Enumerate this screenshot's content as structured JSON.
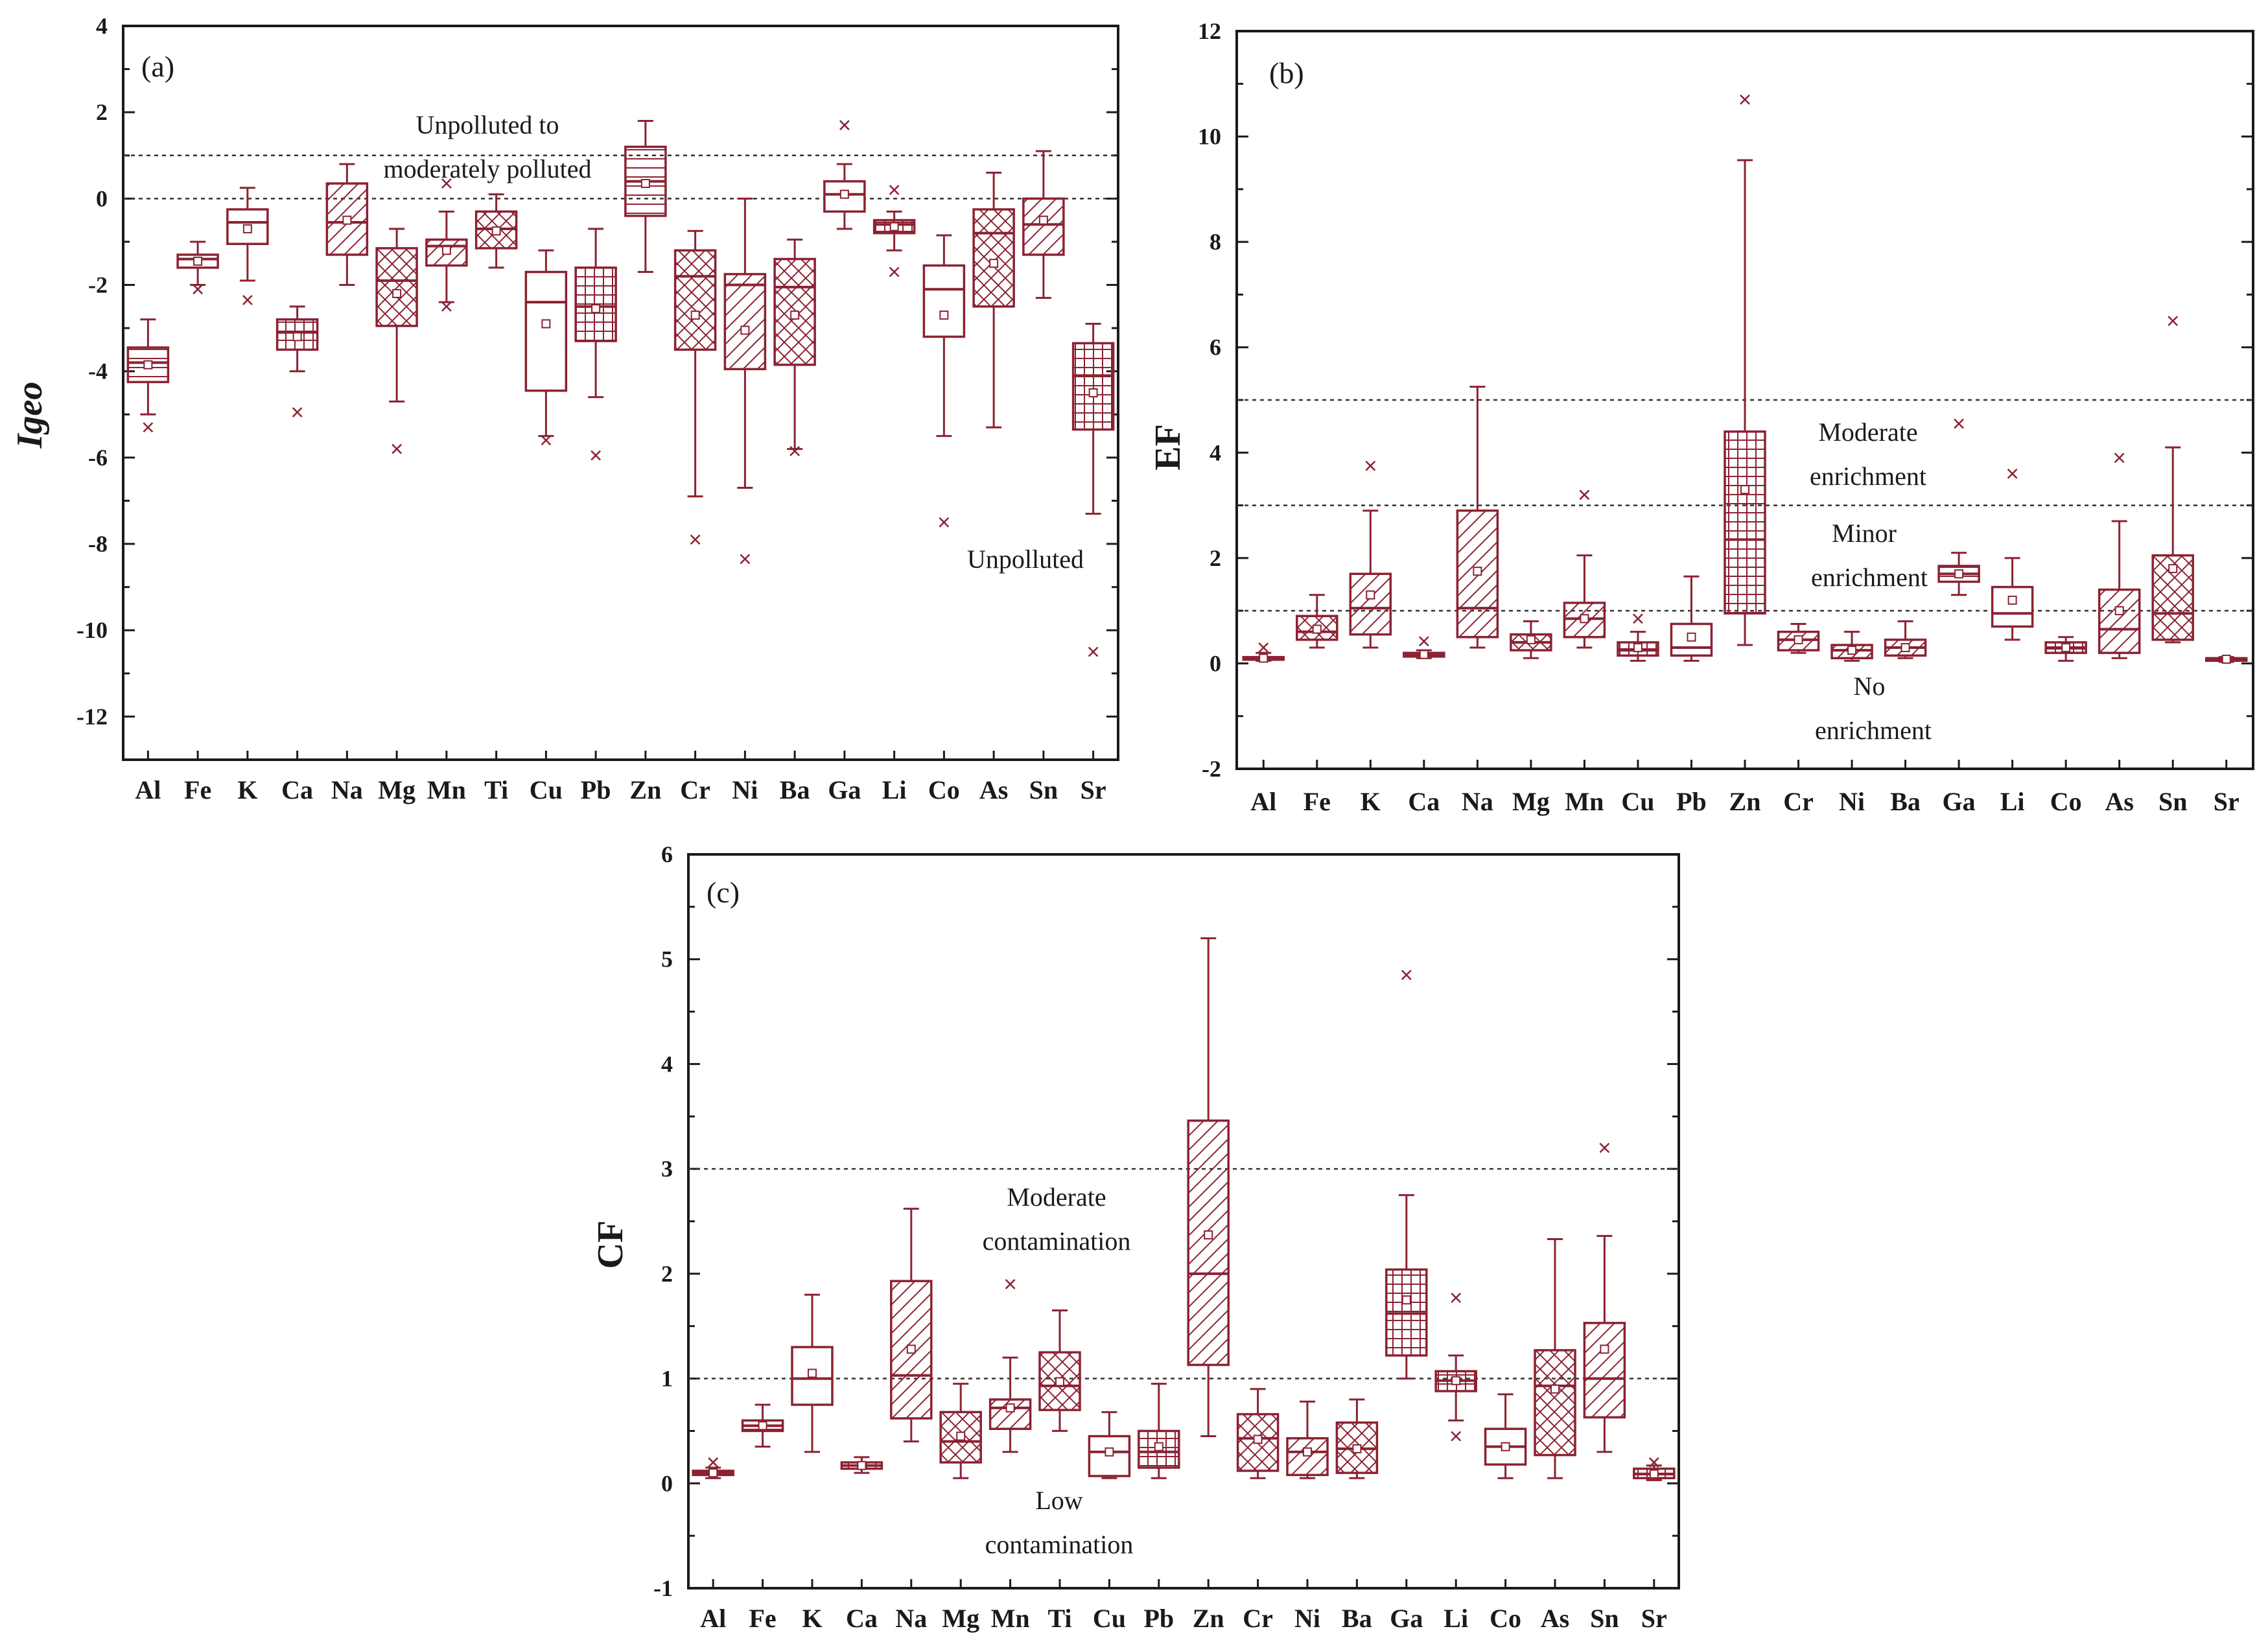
{
  "colors": {
    "box": "#8b2232",
    "axis": "#1a1a1a",
    "threshold": "#333333"
  },
  "chart_data": [
    {
      "type": "box",
      "panel_label": "(a)",
      "ylabel": "Igeo",
      "ylim": [
        -13,
        4
      ],
      "yticks": [
        4,
        2,
        0,
        -2,
        -4,
        -6,
        -8,
        -10,
        -12
      ],
      "categories": [
        "Al",
        "Fe",
        "K",
        "Ca",
        "Na",
        "Mg",
        "Mn",
        "Ti",
        "Cu",
        "Pb",
        "Zn",
        "Cr",
        "Ni",
        "Ba",
        "Ga",
        "Li",
        "Co",
        "As",
        "Sn",
        "Sr"
      ],
      "boxes": [
        {
          "min": -5.0,
          "q1": -4.25,
          "median": -3.8,
          "q3": -3.45,
          "max": -2.8,
          "mean": -3.85,
          "outliers": [
            -5.3
          ],
          "pattern": "hlines"
        },
        {
          "min": -2.0,
          "q1": -1.6,
          "median": -1.4,
          "q3": -1.3,
          "max": -1.0,
          "mean": -1.45,
          "outliers": [
            -2.1
          ],
          "pattern": "hlines"
        },
        {
          "min": -1.9,
          "q1": -1.05,
          "median": -0.55,
          "q3": -0.25,
          "max": 0.25,
          "mean": -0.7,
          "outliers": [
            -2.35
          ],
          "pattern": "none"
        },
        {
          "min": -4.0,
          "q1": -3.5,
          "median": -3.1,
          "q3": -2.8,
          "max": -2.5,
          "mean": -3.2,
          "outliers": [
            -4.95
          ],
          "pattern": "grid"
        },
        {
          "min": -2.0,
          "q1": -1.3,
          "median": -0.55,
          "q3": 0.35,
          "max": 0.8,
          "mean": -0.5,
          "outliers": [],
          "pattern": "diag"
        },
        {
          "min": -4.7,
          "q1": -2.95,
          "median": -1.9,
          "q3": -1.15,
          "max": -0.7,
          "mean": -2.2,
          "outliers": [
            -5.8
          ],
          "pattern": "cross"
        },
        {
          "min": -2.4,
          "q1": -1.55,
          "median": -1.1,
          "q3": -0.95,
          "max": -0.3,
          "mean": -1.2,
          "outliers": [
            0.35,
            -2.5
          ],
          "pattern": "diag"
        },
        {
          "min": -1.6,
          "q1": -1.15,
          "median": -0.7,
          "q3": -0.3,
          "max": 0.1,
          "mean": -0.75,
          "outliers": [],
          "pattern": "cross"
        },
        {
          "min": -5.5,
          "q1": -4.45,
          "median": -2.4,
          "q3": -1.7,
          "max": -1.2,
          "mean": -2.9,
          "outliers": [
            -5.6
          ],
          "pattern": "none"
        },
        {
          "min": -4.6,
          "q1": -3.3,
          "median": -2.5,
          "q3": -1.6,
          "max": -0.7,
          "mean": -2.55,
          "outliers": [
            -5.95
          ],
          "pattern": "grid"
        },
        {
          "min": -1.7,
          "q1": -0.4,
          "median": 0.4,
          "q3": 1.2,
          "max": 1.8,
          "mean": 0.35,
          "outliers": [],
          "pattern": "hlines"
        },
        {
          "min": -6.9,
          "q1": -3.5,
          "median": -1.8,
          "q3": -1.2,
          "max": -0.75,
          "mean": -2.7,
          "outliers": [
            -7.9
          ],
          "pattern": "cross"
        },
        {
          "min": -6.7,
          "q1": -3.95,
          "median": -2.0,
          "q3": -1.75,
          "max": 0.0,
          "mean": -3.05,
          "outliers": [
            -8.35
          ],
          "pattern": "diag"
        },
        {
          "min": -5.8,
          "q1": -3.85,
          "median": -2.05,
          "q3": -1.4,
          "max": -0.95,
          "mean": -2.7,
          "outliers": [
            -5.85
          ],
          "pattern": "cross"
        },
        {
          "min": -0.7,
          "q1": -0.3,
          "median": 0.1,
          "q3": 0.4,
          "max": 0.8,
          "mean": 0.1,
          "outliers": [
            1.7
          ],
          "pattern": "none"
        },
        {
          "min": -1.2,
          "q1": -0.8,
          "median": -0.6,
          "q3": -0.5,
          "max": -0.3,
          "mean": -0.65,
          "outliers": [
            0.2,
            -1.7
          ],
          "pattern": "grid"
        },
        {
          "min": -5.5,
          "q1": -3.2,
          "median": -2.1,
          "q3": -1.55,
          "max": -0.85,
          "mean": -2.7,
          "outliers": [
            -7.5
          ],
          "pattern": "none"
        },
        {
          "min": -5.3,
          "q1": -2.5,
          "median": -0.8,
          "q3": -0.25,
          "max": 0.6,
          "mean": -1.5,
          "outliers": [],
          "pattern": "cross"
        },
        {
          "min": -2.3,
          "q1": -1.3,
          "median": -0.6,
          "q3": 0.0,
          "max": 1.1,
          "mean": -0.5,
          "outliers": [],
          "pattern": "diag"
        },
        {
          "min": -7.3,
          "q1": -5.35,
          "median": -4.1,
          "q3": -3.35,
          "max": -2.9,
          "mean": -4.5,
          "outliers": [
            -10.5
          ],
          "pattern": "grid"
        }
      ],
      "thresholds": [
        1,
        0
      ],
      "annotations": [
        "Unpolluted to",
        "moderately polluted",
        "Unpolluted"
      ]
    },
    {
      "type": "box",
      "panel_label": "(b)",
      "ylabel": "EF",
      "ylim": [
        -2,
        12
      ],
      "yticks": [
        12,
        10,
        8,
        6,
        4,
        2,
        0,
        -2
      ],
      "categories": [
        "Al",
        "Fe",
        "K",
        "Ca",
        "Na",
        "Mg",
        "Mn",
        "Cu",
        "Pb",
        "Zn",
        "Cr",
        "Ni",
        "Ba",
        "Ga",
        "Li",
        "Co",
        "As",
        "Sn",
        "Sr"
      ],
      "boxes": [
        {
          "min": 0.05,
          "q1": 0.08,
          "median": 0.1,
          "q3": 0.12,
          "max": 0.2,
          "mean": 0.1,
          "outliers": [
            0.3
          ],
          "pattern": "none"
        },
        {
          "min": 0.3,
          "q1": 0.45,
          "median": 0.6,
          "q3": 0.9,
          "max": 1.3,
          "mean": 0.65,
          "outliers": [],
          "pattern": "cross"
        },
        {
          "min": 0.3,
          "q1": 0.55,
          "median": 1.05,
          "q3": 1.7,
          "max": 2.9,
          "mean": 1.3,
          "outliers": [
            3.75
          ],
          "pattern": "diag"
        },
        {
          "min": 0.1,
          "q1": 0.13,
          "median": 0.17,
          "q3": 0.2,
          "max": 0.25,
          "mean": 0.17,
          "outliers": [
            0.42
          ],
          "pattern": "grid"
        },
        {
          "min": 0.3,
          "q1": 0.5,
          "median": 1.05,
          "q3": 2.9,
          "max": 5.25,
          "mean": 1.75,
          "outliers": [],
          "pattern": "diag"
        },
        {
          "min": 0.1,
          "q1": 0.25,
          "median": 0.4,
          "q3": 0.55,
          "max": 0.8,
          "mean": 0.45,
          "outliers": [],
          "pattern": "cross"
        },
        {
          "min": 0.3,
          "q1": 0.5,
          "median": 0.85,
          "q3": 1.15,
          "max": 2.05,
          "mean": 0.85,
          "outliers": [
            3.2
          ],
          "pattern": "diag"
        },
        {
          "min": 0.05,
          "q1": 0.15,
          "median": 0.25,
          "q3": 0.4,
          "max": 0.6,
          "mean": 0.3,
          "outliers": [
            0.85
          ],
          "pattern": "grid"
        },
        {
          "min": 0.05,
          "q1": 0.15,
          "median": 0.3,
          "q3": 0.75,
          "max": 1.65,
          "mean": 0.5,
          "outliers": [],
          "pattern": "none"
        },
        {
          "min": 0.35,
          "q1": 0.95,
          "median": 2.35,
          "q3": 4.4,
          "max": 9.55,
          "mean": 3.3,
          "outliers": [
            10.7
          ],
          "pattern": "grid"
        },
        {
          "min": 0.2,
          "q1": 0.25,
          "median": 0.45,
          "q3": 0.6,
          "max": 0.75,
          "mean": 0.45,
          "outliers": [],
          "pattern": "diag"
        },
        {
          "min": 0.05,
          "q1": 0.1,
          "median": 0.25,
          "q3": 0.35,
          "max": 0.6,
          "mean": 0.25,
          "outliers": [],
          "pattern": "diag"
        },
        {
          "min": 0.1,
          "q1": 0.15,
          "median": 0.3,
          "q3": 0.45,
          "max": 0.8,
          "mean": 0.3,
          "outliers": [],
          "pattern": "diag"
        },
        {
          "min": 1.3,
          "q1": 1.55,
          "median": 1.7,
          "q3": 1.85,
          "max": 2.1,
          "mean": 1.7,
          "outliers": [
            4.55
          ],
          "pattern": "hlines"
        },
        {
          "min": 0.45,
          "q1": 0.7,
          "median": 0.95,
          "q3": 1.45,
          "max": 2.0,
          "mean": 1.2,
          "outliers": [
            3.6
          ],
          "pattern": "none"
        },
        {
          "min": 0.05,
          "q1": 0.2,
          "median": 0.3,
          "q3": 0.4,
          "max": 0.5,
          "mean": 0.3,
          "outliers": [],
          "pattern": "grid"
        },
        {
          "min": 0.1,
          "q1": 0.2,
          "median": 0.65,
          "q3": 1.4,
          "max": 2.7,
          "mean": 1.0,
          "outliers": [
            3.9
          ],
          "pattern": "diag"
        },
        {
          "min": 0.4,
          "q1": 0.45,
          "median": 0.95,
          "q3": 2.05,
          "max": 4.1,
          "mean": 1.8,
          "outliers": [
            6.5
          ],
          "pattern": "cross"
        },
        {
          "min": 0.03,
          "q1": 0.06,
          "median": 0.08,
          "q3": 0.1,
          "max": 0.12,
          "mean": 0.08,
          "outliers": [],
          "pattern": "none"
        }
      ],
      "thresholds": [
        5,
        3,
        1
      ],
      "annotations": [
        "Moderate",
        "enrichment",
        "Minor",
        "enrichment",
        "No",
        "enrichment"
      ]
    },
    {
      "type": "box",
      "panel_label": "(c)",
      "ylabel": "CF",
      "ylim": [
        -1,
        6
      ],
      "yticks": [
        6,
        5,
        4,
        3,
        2,
        1,
        0,
        -1
      ],
      "categories": [
        "Al",
        "Fe",
        "K",
        "Ca",
        "Na",
        "Mg",
        "Mn",
        "Ti",
        "Cu",
        "Pb",
        "Zn",
        "Cr",
        "Ni",
        "Ba",
        "Ga",
        "Li",
        "Co",
        "As",
        "Sn",
        "Sr"
      ],
      "boxes": [
        {
          "min": 0.05,
          "q1": 0.08,
          "median": 0.1,
          "q3": 0.12,
          "max": 0.15,
          "mean": 0.1,
          "outliers": [
            0.2
          ],
          "pattern": "none"
        },
        {
          "min": 0.35,
          "q1": 0.5,
          "median": 0.55,
          "q3": 0.6,
          "max": 0.75,
          "mean": 0.55,
          "outliers": [],
          "pattern": "hlines"
        },
        {
          "min": 0.3,
          "q1": 0.75,
          "median": 1.0,
          "q3": 1.3,
          "max": 1.8,
          "mean": 1.05,
          "outliers": [],
          "pattern": "none"
        },
        {
          "min": 0.1,
          "q1": 0.14,
          "median": 0.17,
          "q3": 0.2,
          "max": 0.25,
          "mean": 0.17,
          "outliers": [],
          "pattern": "grid"
        },
        {
          "min": 0.4,
          "q1": 0.62,
          "median": 1.03,
          "q3": 1.93,
          "max": 2.62,
          "mean": 1.28,
          "outliers": [],
          "pattern": "diag"
        },
        {
          "min": 0.05,
          "q1": 0.2,
          "median": 0.4,
          "q3": 0.68,
          "max": 0.95,
          "mean": 0.45,
          "outliers": [],
          "pattern": "cross"
        },
        {
          "min": 0.3,
          "q1": 0.52,
          "median": 0.72,
          "q3": 0.8,
          "max": 1.2,
          "mean": 0.72,
          "outliers": [
            1.9
          ],
          "pattern": "diag"
        },
        {
          "min": 0.5,
          "q1": 0.7,
          "median": 0.93,
          "q3": 1.25,
          "max": 1.65,
          "mean": 0.97,
          "outliers": [],
          "pattern": "cross"
        },
        {
          "min": 0.05,
          "q1": 0.07,
          "median": 0.3,
          "q3": 0.45,
          "max": 0.68,
          "mean": 0.3,
          "outliers": [],
          "pattern": "none"
        },
        {
          "min": 0.05,
          "q1": 0.15,
          "median": 0.3,
          "q3": 0.5,
          "max": 0.95,
          "mean": 0.35,
          "outliers": [],
          "pattern": "grid"
        },
        {
          "min": 0.45,
          "q1": 1.13,
          "median": 2.0,
          "q3": 3.46,
          "max": 5.2,
          "mean": 2.37,
          "outliers": [],
          "pattern": "diag"
        },
        {
          "min": 0.05,
          "q1": 0.12,
          "median": 0.43,
          "q3": 0.66,
          "max": 0.9,
          "mean": 0.42,
          "outliers": [],
          "pattern": "cross"
        },
        {
          "min": 0.05,
          "q1": 0.08,
          "median": 0.3,
          "q3": 0.43,
          "max": 0.78,
          "mean": 0.3,
          "outliers": [],
          "pattern": "diag"
        },
        {
          "min": 0.05,
          "q1": 0.1,
          "median": 0.33,
          "q3": 0.58,
          "max": 0.8,
          "mean": 0.33,
          "outliers": [],
          "pattern": "cross"
        },
        {
          "min": 1.0,
          "q1": 1.22,
          "median": 1.62,
          "q3": 2.04,
          "max": 2.75,
          "mean": 1.75,
          "outliers": [
            4.85
          ],
          "pattern": "grid"
        },
        {
          "min": 0.6,
          "q1": 0.88,
          "median": 0.98,
          "q3": 1.07,
          "max": 1.22,
          "mean": 0.98,
          "outliers": [
            1.77,
            0.45
          ],
          "pattern": "grid"
        },
        {
          "min": 0.05,
          "q1": 0.18,
          "median": 0.35,
          "q3": 0.52,
          "max": 0.85,
          "mean": 0.35,
          "outliers": [],
          "pattern": "none"
        },
        {
          "min": 0.05,
          "q1": 0.27,
          "median": 0.93,
          "q3": 1.27,
          "max": 2.33,
          "mean": 0.9,
          "outliers": [],
          "pattern": "cross"
        },
        {
          "min": 0.3,
          "q1": 0.63,
          "median": 1.0,
          "q3": 1.53,
          "max": 2.36,
          "mean": 1.28,
          "outliers": [
            3.2
          ],
          "pattern": "diag"
        },
        {
          "min": 0.03,
          "q1": 0.05,
          "median": 0.09,
          "q3": 0.14,
          "max": 0.17,
          "mean": 0.09,
          "outliers": [
            0.2
          ],
          "pattern": "grid"
        }
      ],
      "thresholds": [
        3,
        1
      ],
      "annotations": [
        "Moderate",
        "contamination",
        "Low",
        "contamination"
      ]
    }
  ]
}
